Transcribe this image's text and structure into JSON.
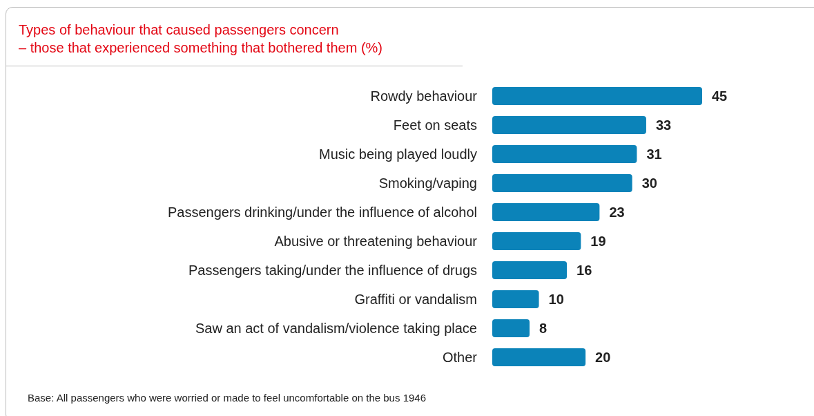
{
  "chart_data": {
    "type": "bar",
    "orientation": "horizontal",
    "title": "Types of behaviour that caused passengers concern\n– those that experienced something that bothered them (%)",
    "categories": [
      "Rowdy behaviour",
      "Feet on seats",
      "Music being played loudly",
      "Smoking/vaping",
      "Passengers drinking/under the influence of alcohol",
      "Abusive or threatening behaviour",
      "Passengers taking/under the influence of drugs",
      "Graffiti or vandalism",
      "Saw an act of vandalism/violence taking place",
      "Other"
    ],
    "values": [
      45,
      33,
      31,
      30,
      23,
      19,
      16,
      10,
      8,
      20
    ],
    "color": "#0b83b9",
    "data_labels": true,
    "annotations": [
      "Base: All passengers who were worried or made to feel uncomfortable on the bus 1946"
    ]
  }
}
